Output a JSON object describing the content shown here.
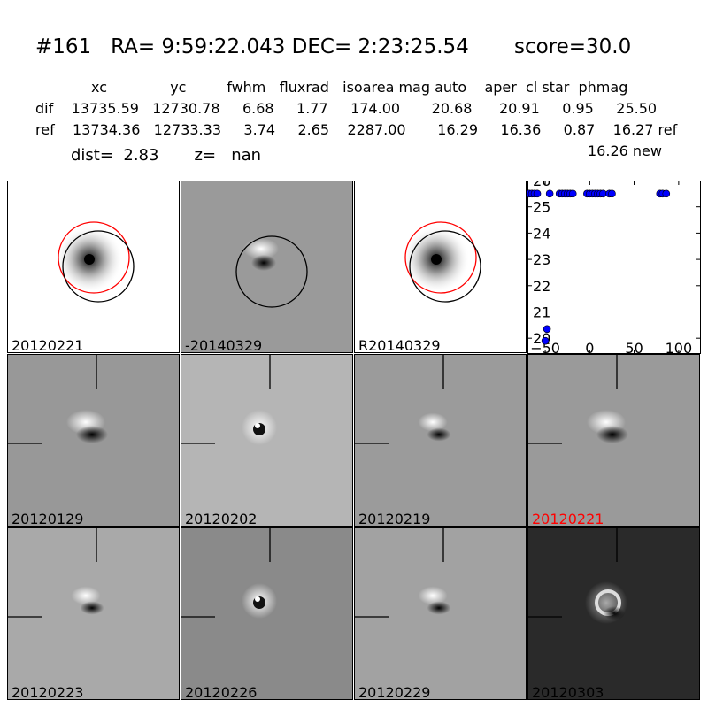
{
  "header": {
    "title": "#161   RA= 9:59:22.043 DEC= 2:23:25.54       score=30.0",
    "table_header": "xc              yc         fwhm   fluxrad   isoarea mag auto    aper  cl star  phmag",
    "row_dif": "dif    13735.59   12730.78     6.68     1.77     174.00       20.68      20.91     0.95     25.50",
    "row_ref": "ref    13734.36   12733.33     3.74     2.65    2287.00       16.29     16.36     0.87    16.27 ref",
    "new_phmag": "16.26 new",
    "dist_line": "dist=  2.83       z=   nan"
  },
  "panels": [
    {
      "label": "20120221",
      "bg": "#ffffff",
      "style": "ref"
    },
    {
      "label": "-20140329",
      "bg": "#9a9a9a",
      "style": "diff-circle"
    },
    {
      "label": "R20140329",
      "bg": "#ffffff",
      "style": "ref"
    },
    {
      "label": "20120129",
      "bg": "#989898",
      "style": "dipole"
    },
    {
      "label": "20120202",
      "bg": "#b5b5b5",
      "style": "ring"
    },
    {
      "label": "20120219",
      "bg": "#9b9b9b",
      "style": "dipole-small"
    },
    {
      "label": "20120221",
      "bg": "#9a9a9a",
      "style": "dipole",
      "label_color": "#ff0000"
    },
    {
      "label": "20120223",
      "bg": "#a9a9a9",
      "style": "dipole-small"
    },
    {
      "label": "20120226",
      "bg": "#8a8a8a",
      "style": "ring"
    },
    {
      "label": "20120229",
      "bg": "#a2a2a2",
      "style": "dipole-small"
    },
    {
      "label": "20120303",
      "bg": "#2a2a2a",
      "style": "dark-ring"
    }
  ],
  "colors": {
    "ref_circle": "#ff0000",
    "marker": "#0000ff"
  },
  "chart_data": {
    "type": "scatter",
    "x_ticks": [
      "0",
      "50",
      "100"
    ],
    "y_ticks": [
      "20",
      "21",
      "22",
      "23",
      "24",
      "25",
      "26"
    ],
    "xlim": [
      -70,
      125
    ],
    "ylim": [
      26,
      19.4
    ],
    "y_inverted": true,
    "points": [
      {
        "x": -50,
        "y": 19.9
      },
      {
        "x": -48,
        "y": 20.35
      },
      {
        "x": -68,
        "y": 25.5
      },
      {
        "x": -65,
        "y": 25.5
      },
      {
        "x": -62,
        "y": 25.5
      },
      {
        "x": -59,
        "y": 25.5
      },
      {
        "x": -45,
        "y": 25.5
      },
      {
        "x": -34,
        "y": 25.5
      },
      {
        "x": -31,
        "y": 25.5
      },
      {
        "x": -28,
        "y": 25.5
      },
      {
        "x": -25,
        "y": 25.5
      },
      {
        "x": -22,
        "y": 25.5
      },
      {
        "x": -19,
        "y": 25.5
      },
      {
        "x": -3,
        "y": 25.5
      },
      {
        "x": 0,
        "y": 25.5
      },
      {
        "x": 3,
        "y": 25.5
      },
      {
        "x": 6,
        "y": 25.5
      },
      {
        "x": 9,
        "y": 25.5
      },
      {
        "x": 12,
        "y": 25.5
      },
      {
        "x": 15,
        "y": 25.5
      },
      {
        "x": 22,
        "y": 25.5
      },
      {
        "x": 25,
        "y": 25.5
      },
      {
        "x": 79,
        "y": 25.5
      },
      {
        "x": 82,
        "y": 25.5
      },
      {
        "x": 86,
        "y": 25.5
      }
    ]
  }
}
